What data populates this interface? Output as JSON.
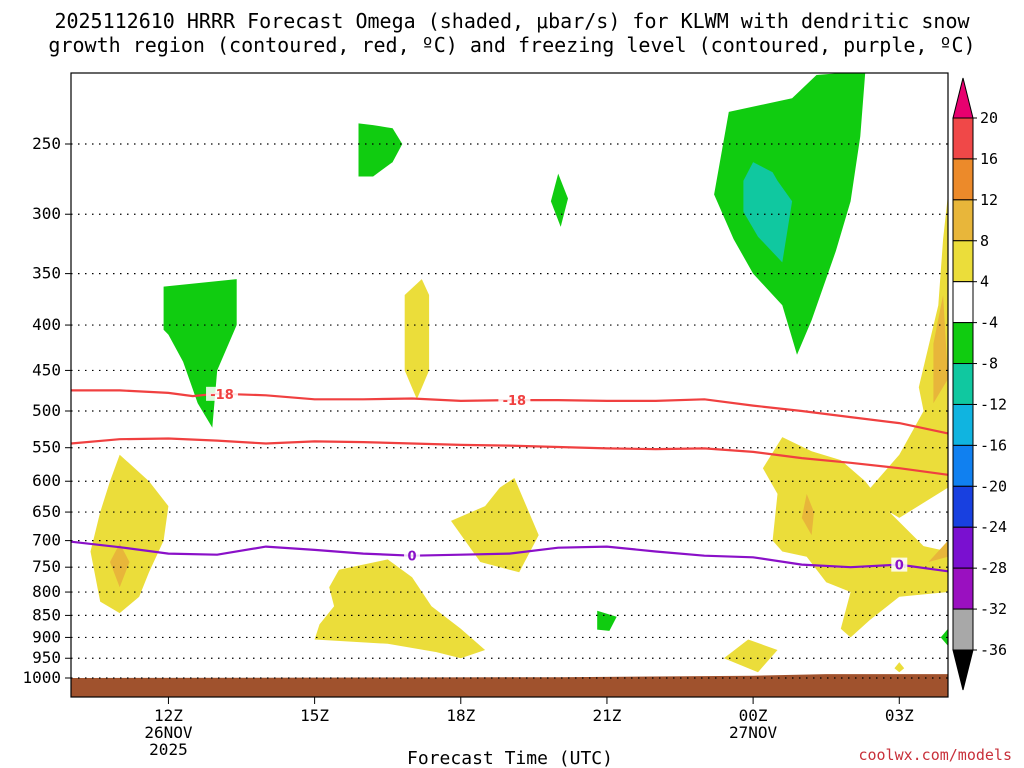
{
  "chart_data": {
    "type": "heatmap",
    "title_line1": "2025112610 HRRR Forecast Omega (shaded, μbar/s) for KLWM with dendritic snow",
    "title_line2": "growth region (contoured, red, ºC) and freezing level (contoured, purple, ºC)",
    "xlabel": "Forecast Time (UTC)",
    "ylabel": "",
    "x_start_hour": 10.0,
    "x_end_hour": 28.0,
    "x_ticks": [
      {
        "hour": 12,
        "label": "12Z",
        "sub1": "26NOV",
        "sub2": "2025"
      },
      {
        "hour": 15,
        "label": "15Z",
        "sub1": "",
        "sub2": ""
      },
      {
        "hour": 18,
        "label": "18Z",
        "sub1": "",
        "sub2": ""
      },
      {
        "hour": 21,
        "label": "21Z",
        "sub1": "",
        "sub2": ""
      },
      {
        "hour": 24,
        "label": "00Z",
        "sub1": "27NOV",
        "sub2": ""
      },
      {
        "hour": 27,
        "label": "03Z",
        "sub1": "",
        "sub2": ""
      }
    ],
    "y_axis": "pressure_hPa_log",
    "y_top": 200,
    "y_bottom": 1010,
    "y_ticks": [
      250,
      300,
      350,
      400,
      450,
      500,
      550,
      600,
      650,
      700,
      750,
      800,
      850,
      900,
      950,
      1000
    ],
    "colorbar": {
      "levels": [
        20,
        16,
        12,
        8,
        4,
        -4,
        -8,
        -12,
        -16,
        -20,
        -24,
        -28,
        -32,
        -36
      ],
      "colors": [
        "#e8006f",
        "#f04848",
        "#ec8a2a",
        "#e8b63a",
        "#ebdd3a",
        "#ffffff",
        "#10cc10",
        "#10c8a0",
        "#10b4e0",
        "#1080f0",
        "#1840e0",
        "#7a10d0",
        "#9a10c0",
        "#a8a8a8",
        "#000000"
      ]
    },
    "contours": [
      {
        "name": "-18 C (upper)",
        "color": "#f04040",
        "label": "-18",
        "points": [
          [
            10,
            474
          ],
          [
            11,
            474
          ],
          [
            12,
            477
          ],
          [
            12.5,
            481
          ],
          [
            13,
            478
          ],
          [
            14,
            480
          ],
          [
            15,
            485
          ],
          [
            16,
            485
          ],
          [
            17,
            484
          ],
          [
            18,
            487
          ],
          [
            19,
            486
          ],
          [
            20,
            486
          ],
          [
            21,
            487
          ],
          [
            22,
            487
          ],
          [
            23,
            485
          ],
          [
            24,
            493
          ],
          [
            25,
            500
          ],
          [
            26,
            508
          ],
          [
            27,
            516
          ],
          [
            28,
            530
          ]
        ],
        "label_hours": [
          13.1,
          19.1
        ]
      },
      {
        "name": "-18 C (lower)",
        "color": "#f04040",
        "label": "",
        "points": [
          [
            10,
            544
          ],
          [
            11,
            538
          ],
          [
            12,
            537
          ],
          [
            13,
            540
          ],
          [
            14,
            544
          ],
          [
            15,
            541
          ],
          [
            16,
            542
          ],
          [
            17,
            544
          ],
          [
            18,
            546
          ],
          [
            19,
            547
          ],
          [
            20,
            549
          ],
          [
            21,
            551
          ],
          [
            22,
            552
          ],
          [
            23,
            551
          ],
          [
            24,
            556
          ],
          [
            25,
            565
          ],
          [
            26,
            572
          ],
          [
            27,
            580
          ],
          [
            28,
            590
          ]
        ],
        "label_hours": []
      },
      {
        "name": "0 C freezing level",
        "color": "#8a10c8",
        "label": "0",
        "points": [
          [
            10,
            702
          ],
          [
            11,
            712
          ],
          [
            12,
            724
          ],
          [
            13,
            726
          ],
          [
            14,
            711
          ],
          [
            15,
            717
          ],
          [
            16,
            724
          ],
          [
            17,
            728
          ],
          [
            18,
            726
          ],
          [
            19,
            724
          ],
          [
            20,
            713
          ],
          [
            21,
            711
          ],
          [
            22,
            720
          ],
          [
            23,
            728
          ],
          [
            24,
            731
          ],
          [
            25,
            745
          ],
          [
            26,
            750
          ],
          [
            27,
            745
          ],
          [
            28,
            758
          ]
        ],
        "label_hours": [
          17.0,
          27.0
        ]
      }
    ],
    "shaded_regions": [
      {
        "name": "green upper right",
        "value": -6,
        "color": "#10cc10",
        "points": [
          [
            24.8,
            222
          ],
          [
            25.3,
            209
          ],
          [
            25.8,
            200
          ],
          [
            26.3,
            200
          ],
          [
            26.2,
            245
          ],
          [
            26.0,
            290
          ],
          [
            25.7,
            330
          ],
          [
            25.2,
            395
          ],
          [
            24.9,
            432
          ],
          [
            24.6,
            380
          ],
          [
            24.0,
            350
          ],
          [
            23.6,
            320
          ],
          [
            23.2,
            285
          ],
          [
            23.5,
            230
          ]
        ]
      },
      {
        "name": "teal upper right",
        "value": -10,
        "color": "#10c8a0",
        "points": [
          [
            24.0,
            262
          ],
          [
            24.4,
            269
          ],
          [
            24.5,
            275
          ],
          [
            24.8,
            290
          ],
          [
            24.6,
            340
          ],
          [
            24.1,
            318
          ],
          [
            23.8,
            298
          ],
          [
            23.8,
            275
          ]
        ]
      },
      {
        "name": "green 250",
        "value": -6,
        "color": "#10cc10",
        "points": [
          [
            15.9,
            237
          ],
          [
            16.2,
            238
          ],
          [
            16.6,
            240
          ],
          [
            16.8,
            250
          ],
          [
            16.6,
            262
          ],
          [
            16.2,
            272
          ],
          [
            15.9,
            272
          ]
        ]
      },
      {
        "name": "green 290",
        "value": -6,
        "color": "#10cc10",
        "points": [
          [
            20.0,
            270
          ],
          [
            20.2,
            288
          ],
          [
            20.05,
            310
          ],
          [
            19.85,
            290
          ]
        ]
      },
      {
        "name": "green 400",
        "value": -6,
        "color": "#10cc10",
        "points": [
          [
            11.9,
            362
          ],
          [
            13.4,
            355
          ],
          [
            13.4,
            400
          ],
          [
            13.0,
            450
          ],
          [
            12.9,
            522
          ],
          [
            12.6,
            490
          ],
          [
            12.3,
            440
          ],
          [
            12.0,
            410
          ],
          [
            11.9,
            405
          ]
        ]
      },
      {
        "name": "green 870",
        "value": -6,
        "color": "#10cc10",
        "points": [
          [
            20.8,
            840
          ],
          [
            21.2,
            853
          ],
          [
            21.05,
            885
          ],
          [
            20.8,
            882
          ]
        ]
      },
      {
        "name": "yellow 400",
        "value": 5,
        "color": "#ebdd3a",
        "points": [
          [
            17.2,
            355
          ],
          [
            17.35,
            370
          ],
          [
            17.35,
            450
          ],
          [
            17.1,
            485
          ],
          [
            16.85,
            450
          ],
          [
            16.85,
            370
          ]
        ]
      },
      {
        "name": "yellow left",
        "value": 5,
        "color": "#ebdd3a",
        "points": [
          [
            11.0,
            560
          ],
          [
            11.6,
            600
          ],
          [
            12.0,
            640
          ],
          [
            11.9,
            700
          ],
          [
            11.6,
            760
          ],
          [
            11.4,
            810
          ],
          [
            11.0,
            845
          ],
          [
            10.6,
            820
          ],
          [
            10.4,
            720
          ],
          [
            10.6,
            650
          ],
          [
            10.8,
            600
          ]
        ]
      },
      {
        "name": "orange left",
        "value": 9,
        "color": "#e8b63a",
        "points": [
          [
            11.0,
            705
          ],
          [
            11.2,
            740
          ],
          [
            11.0,
            790
          ],
          [
            10.8,
            740
          ]
        ]
      },
      {
        "name": "yellow 670",
        "value": 5,
        "color": "#ebdd3a",
        "points": [
          [
            19.1,
            595
          ],
          [
            19.6,
            690
          ],
          [
            19.2,
            760
          ],
          [
            18.4,
            740
          ],
          [
            17.8,
            665
          ],
          [
            18.5,
            640
          ],
          [
            18.8,
            610
          ]
        ]
      },
      {
        "name": "yellow 850",
        "value": 5,
        "color": "#ebdd3a",
        "points": [
          [
            15.5,
            755
          ],
          [
            16.5,
            735
          ],
          [
            17.0,
            770
          ],
          [
            17.4,
            830
          ],
          [
            18.0,
            880
          ],
          [
            18.5,
            930
          ],
          [
            18.0,
            950
          ],
          [
            17.5,
            935
          ],
          [
            16.5,
            915
          ],
          [
            15.0,
            905
          ],
          [
            15.1,
            870
          ],
          [
            15.4,
            830
          ],
          [
            15.3,
            790
          ]
        ]
      },
      {
        "name": "yellow 940",
        "value": 5,
        "color": "#ebdd3a",
        "points": [
          [
            23.9,
            905
          ],
          [
            24.5,
            930
          ],
          [
            24.1,
            985
          ],
          [
            23.4,
            950
          ]
        ]
      },
      {
        "name": "yellow 960",
        "value": 5,
        "color": "#ebdd3a",
        "points": [
          [
            27.0,
            960
          ],
          [
            27.1,
            975
          ],
          [
            27.0,
            985
          ],
          [
            26.9,
            975
          ]
        ]
      },
      {
        "name": "yellow right",
        "value": 5,
        "color": "#ebdd3a",
        "points": [
          [
            28.0,
            285
          ],
          [
            28.0,
            610
          ],
          [
            27.0,
            660
          ],
          [
            26.6,
            640
          ],
          [
            26.3,
            620
          ],
          [
            27.0,
            560
          ],
          [
            27.5,
            500
          ],
          [
            27.4,
            470
          ],
          [
            27.8,
            380
          ],
          [
            27.9,
            320
          ]
        ]
      },
      {
        "name": "yellow right lower",
        "value": 5,
        "color": "#ebdd3a",
        "points": [
          [
            24.6,
            535
          ],
          [
            25.2,
            555
          ],
          [
            25.8,
            568
          ],
          [
            26.3,
            600
          ],
          [
            26.8,
            650
          ],
          [
            27.5,
            710
          ],
          [
            28.0,
            720
          ],
          [
            28.0,
            800
          ],
          [
            27.0,
            810
          ],
          [
            26.4,
            860
          ],
          [
            26.0,
            900
          ],
          [
            25.8,
            880
          ],
          [
            26.0,
            800
          ],
          [
            25.5,
            780
          ],
          [
            25.1,
            730
          ],
          [
            24.6,
            720
          ],
          [
            24.4,
            700
          ],
          [
            24.5,
            620
          ],
          [
            24.2,
            580
          ]
        ]
      },
      {
        "name": "orange right small",
        "value": 9,
        "color": "#e8b63a",
        "points": [
          [
            25.1,
            620
          ],
          [
            25.25,
            650
          ],
          [
            25.2,
            690
          ],
          [
            25.0,
            660
          ]
        ]
      },
      {
        "name": "orange right edge",
        "value": 9,
        "color": "#e8b63a",
        "points": [
          [
            27.9,
            370
          ],
          [
            28.0,
            460
          ],
          [
            27.7,
            490
          ],
          [
            27.7,
            420
          ]
        ]
      },
      {
        "name": "orange right 730",
        "value": 9,
        "color": "#e8b63a",
        "points": [
          [
            28.0,
            700
          ],
          [
            27.6,
            740
          ],
          [
            27.2,
            760
          ],
          [
            27.6,
            740
          ],
          [
            28.0,
            730
          ]
        ]
      },
      {
        "name": "green right edge",
        "value": -6,
        "color": "#10cc10",
        "points": [
          [
            28.0,
            880
          ],
          [
            28.0,
            920
          ],
          [
            27.85,
            900
          ]
        ]
      }
    ],
    "terrain": {
      "name": "ground",
      "color": "#a0522d",
      "surface_hPa_left": 1000,
      "surface_hPa_right": 990
    },
    "credit": "coolwx.com/models"
  }
}
